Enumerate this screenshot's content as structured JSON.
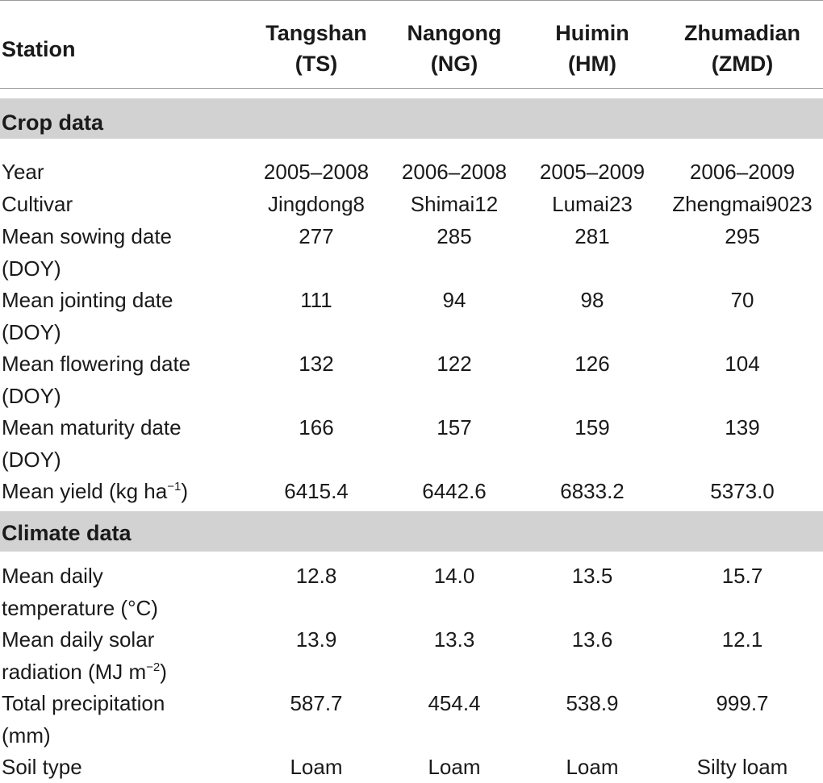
{
  "header": {
    "station": "Station",
    "columns": [
      {
        "name": "Tangshan",
        "code": "(TS)"
      },
      {
        "name": "Nangong",
        "code": "(NG)"
      },
      {
        "name": "Huimin",
        "code": "(HM)"
      },
      {
        "name": "Zhumadian",
        "code": "(ZMD)"
      }
    ]
  },
  "sections": {
    "crop": "Crop data",
    "climate": "Climate data"
  },
  "crop_rows": [
    {
      "label": [
        "Year"
      ],
      "values": [
        "2005–2008",
        "2006–2008",
        "2005–2009",
        "2006–2009"
      ]
    },
    {
      "label": [
        "Cultivar"
      ],
      "values": [
        "Jingdong8",
        "Shimai12",
        "Lumai23",
        "Zhengmai9023"
      ]
    },
    {
      "label": [
        "Mean sowing date",
        "(DOY)"
      ],
      "values": [
        "277",
        "285",
        "281",
        "295"
      ]
    },
    {
      "label": [
        "Mean jointing date",
        "(DOY)"
      ],
      "values": [
        "111",
        "94",
        "98",
        "70"
      ]
    },
    {
      "label": [
        "Mean flowering date",
        "(DOY)"
      ],
      "values": [
        "132",
        "122",
        "126",
        "104"
      ]
    },
    {
      "label": [
        "Mean maturity date",
        "(DOY)"
      ],
      "values": [
        "166",
        "157",
        "159",
        "139"
      ]
    },
    {
      "label": [
        "Mean yield (kg ha",
        ")"
      ],
      "label_sup": "−1",
      "values": [
        "6415.4",
        "6442.6",
        "6833.2",
        "5373.0"
      ]
    }
  ],
  "climate_rows": [
    {
      "label": [
        "Mean daily",
        "temperature (°C)"
      ],
      "values": [
        "12.8",
        "14.0",
        "13.5",
        "15.7"
      ]
    },
    {
      "label": [
        "Mean daily solar",
        "radiation (MJ m",
        ")"
      ],
      "label_sup": "−2",
      "values": [
        "13.9",
        "13.3",
        "13.6",
        "12.1"
      ]
    },
    {
      "label": [
        "Total precipitation",
        "(mm)"
      ],
      "values": [
        "587.7",
        "454.4",
        "538.9",
        "999.7"
      ]
    },
    {
      "label": [
        "Soil type"
      ],
      "values": [
        "Loam",
        "Loam",
        "Loam",
        "Silty loam"
      ]
    }
  ]
}
